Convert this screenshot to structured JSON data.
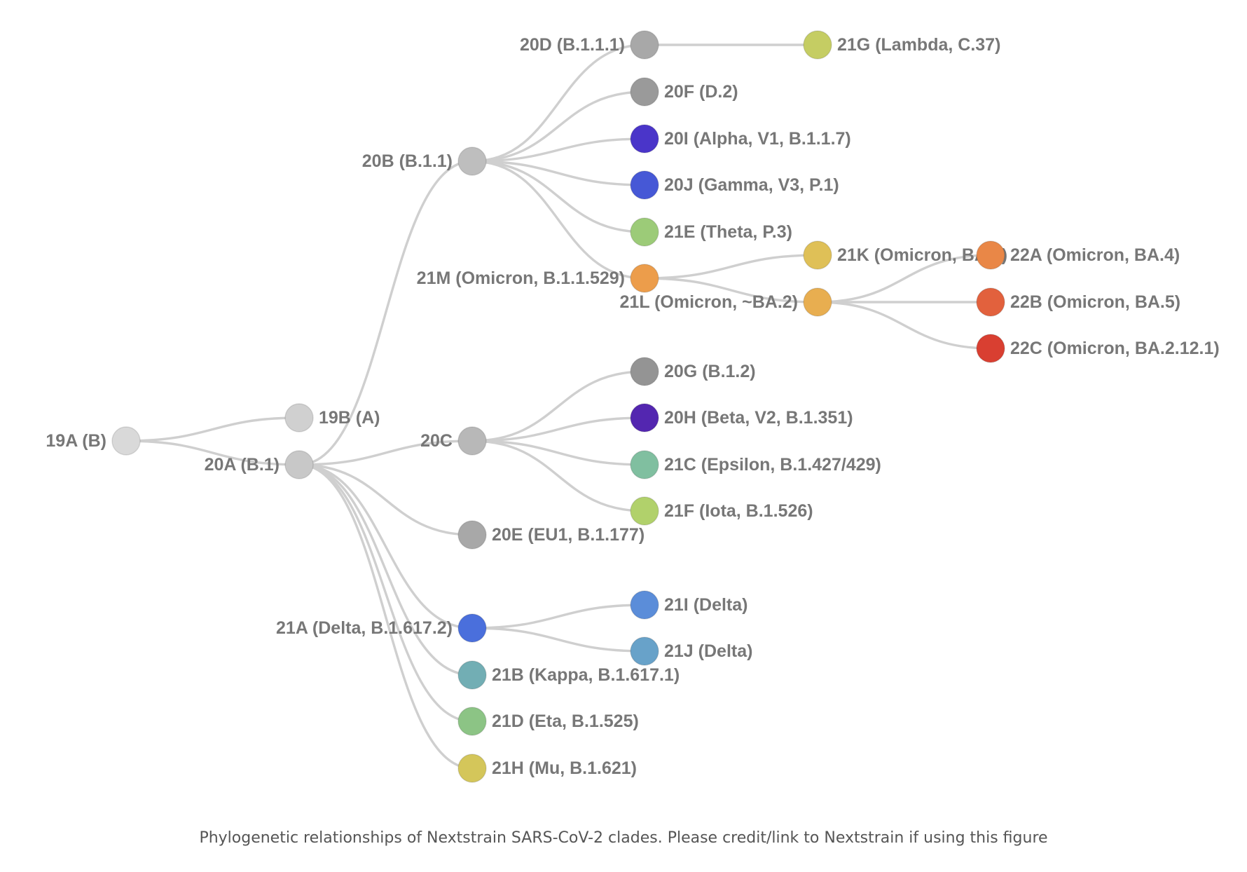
{
  "caption": "Phylogenetic relationships of Nextstrain SARS-CoV-2 clades. Please credit/link to Nextstrain if using this figure",
  "colors": {
    "edge": "#cfcfcf",
    "label": "#777777"
  },
  "tree": {
    "nodes": [
      {
        "id": "19A",
        "label": "19A (B)",
        "color": "#d9d9d9"
      },
      {
        "id": "19B",
        "label": "19B (A)",
        "color": "#d0d0d0"
      },
      {
        "id": "20A",
        "label": "20A (B.1)",
        "color": "#c8c8c8"
      },
      {
        "id": "20B",
        "label": "20B (B.1.1)",
        "color": "#bebebe"
      },
      {
        "id": "20C",
        "label": "20C",
        "color": "#b8b8b8"
      },
      {
        "id": "20E",
        "label": "20E (EU1, B.1.177)",
        "color": "#a8a8a8"
      },
      {
        "id": "21A",
        "label": "21A (Delta, B.1.617.2)",
        "color": "#4a6fdc"
      },
      {
        "id": "21B",
        "label": "21B (Kappa, B.1.617.1)",
        "color": "#72aeb4"
      },
      {
        "id": "21D",
        "label": "21D (Eta, B.1.525)",
        "color": "#8cc485"
      },
      {
        "id": "21H",
        "label": "21H (Mu, B.1.621)",
        "color": "#d4c65a"
      },
      {
        "id": "20D",
        "label": "20D (B.1.1.1)",
        "color": "#a8a8a8"
      },
      {
        "id": "20F",
        "label": "20F (D.2)",
        "color": "#9a9a9a"
      },
      {
        "id": "20I",
        "label": "20I (Alpha, V1, B.1.1.7)",
        "color": "#4a35c9"
      },
      {
        "id": "20J",
        "label": "20J (Gamma, V3, P.1)",
        "color": "#4658d6"
      },
      {
        "id": "21E",
        "label": "21E (Theta, P.3)",
        "color": "#9ccb78"
      },
      {
        "id": "21M",
        "label": "21M (Omicron, B.1.1.529)",
        "color": "#ec9d4b"
      },
      {
        "id": "21G",
        "label": "21G (Lambda, C.37)",
        "color": "#c5cd63"
      },
      {
        "id": "21K",
        "label": "21K (Omicron, BA.1)",
        "color": "#dfc057"
      },
      {
        "id": "21L",
        "label": "21L (Omicron, ~BA.2)",
        "color": "#e8ae50"
      },
      {
        "id": "22A",
        "label": "22A (Omicron, BA.4)",
        "color": "#e98747"
      },
      {
        "id": "22B",
        "label": "22B (Omicron, BA.5)",
        "color": "#e2613d"
      },
      {
        "id": "22C",
        "label": "22C (Omicron, BA.2.12.1)",
        "color": "#d93f31"
      },
      {
        "id": "20G",
        "label": "20G (B.1.2)",
        "color": "#949494"
      },
      {
        "id": "20H",
        "label": "20H (Beta, V2, B.1.351)",
        "color": "#5326b0"
      },
      {
        "id": "21C",
        "label": "21C (Epsilon, B.1.427/429)",
        "color": "#80bfa0"
      },
      {
        "id": "21F",
        "label": "21F (Iota, B.1.526)",
        "color": "#b1d16b"
      },
      {
        "id": "21I",
        "label": "21I (Delta)",
        "color": "#5b8dd9"
      },
      {
        "id": "21J",
        "label": "21J (Delta)",
        "color": "#68a2c9"
      }
    ],
    "edges": [
      [
        "19A",
        "19B"
      ],
      [
        "19A",
        "20A"
      ],
      [
        "20A",
        "20B"
      ],
      [
        "20A",
        "20C"
      ],
      [
        "20A",
        "20E"
      ],
      [
        "20A",
        "21A"
      ],
      [
        "20A",
        "21B"
      ],
      [
        "20A",
        "21D"
      ],
      [
        "20A",
        "21H"
      ],
      [
        "20B",
        "20D"
      ],
      [
        "20B",
        "20F"
      ],
      [
        "20B",
        "20I"
      ],
      [
        "20B",
        "20J"
      ],
      [
        "20B",
        "21E"
      ],
      [
        "20B",
        "21M"
      ],
      [
        "20D",
        "21G"
      ],
      [
        "21M",
        "21K"
      ],
      [
        "21M",
        "21L"
      ],
      [
        "21L",
        "22A"
      ],
      [
        "21L",
        "22B"
      ],
      [
        "21L",
        "22C"
      ],
      [
        "20C",
        "20G"
      ],
      [
        "20C",
        "20H"
      ],
      [
        "20C",
        "21C"
      ],
      [
        "20C",
        "21F"
      ],
      [
        "21A",
        "21I"
      ],
      [
        "21A",
        "21J"
      ]
    ]
  }
}
